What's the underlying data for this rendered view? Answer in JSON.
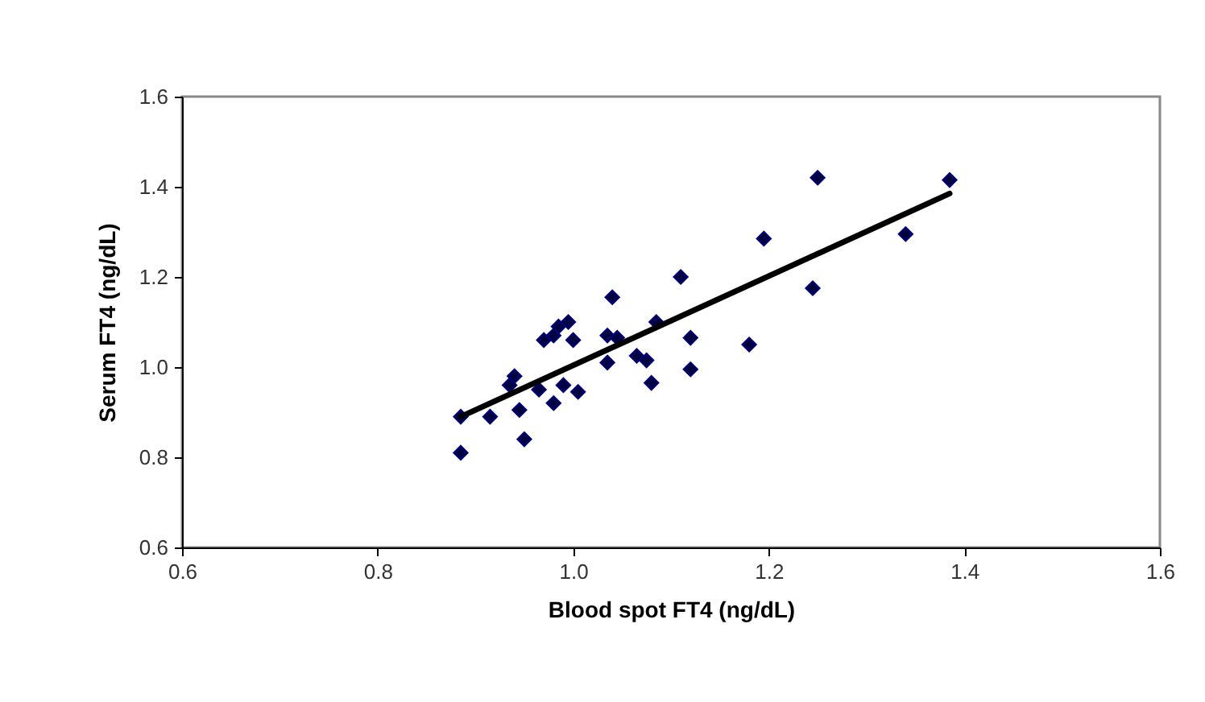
{
  "chart_data": {
    "type": "scatter",
    "xlabel": "Blood spot FT4 (ng/dL)",
    "ylabel": "Serum FT4 (ng/dL)",
    "xlim": [
      0.6,
      1.6
    ],
    "ylim": [
      0.6,
      1.6
    ],
    "xticks": [
      {
        "value": 0.6,
        "label": "0.6"
      },
      {
        "value": 0.8,
        "label": "0.8"
      },
      {
        "value": 1.0,
        "label": "1.0"
      },
      {
        "value": 1.2,
        "label": "1.2"
      },
      {
        "value": 1.4,
        "label": "1.4"
      },
      {
        "value": 1.6,
        "label": "1.6"
      }
    ],
    "yticks": [
      {
        "value": 0.6,
        "label": "0.6"
      },
      {
        "value": 0.8,
        "label": "0.8"
      },
      {
        "value": 1.0,
        "label": "1.0"
      },
      {
        "value": 1.2,
        "label": "1.2"
      },
      {
        "value": 1.4,
        "label": "1.4"
      },
      {
        "value": 1.6,
        "label": "1.6"
      }
    ],
    "grid": false,
    "series": [
      {
        "marker": "diamond",
        "color": "#000040",
        "x": [
          0.885,
          0.885,
          0.915,
          0.935,
          0.94,
          0.945,
          0.95,
          0.965,
          0.97,
          0.98,
          0.98,
          0.985,
          0.995,
          0.99,
          1.0,
          1.005,
          1.035,
          1.035,
          1.04,
          1.045,
          1.065,
          1.075,
          1.08,
          1.085,
          1.11,
          1.12,
          1.12,
          1.18,
          1.195,
          1.245,
          1.25,
          1.34,
          1.385
        ],
        "values": [
          0.81,
          0.89,
          0.89,
          0.96,
          0.98,
          0.905,
          0.84,
          0.95,
          1.06,
          0.92,
          1.07,
          1.09,
          1.1,
          0.96,
          1.06,
          0.945,
          1.07,
          1.01,
          1.155,
          1.065,
          1.025,
          1.015,
          0.965,
          1.1,
          1.2,
          1.065,
          0.995,
          1.05,
          1.285,
          1.175,
          1.42,
          1.295,
          1.415
        ]
      },
      {
        "type": "line",
        "marker": "none",
        "color": "#000000",
        "line_style": "solid",
        "x": [
          0.885,
          1.385
        ],
        "values": [
          0.89,
          1.385
        ]
      }
    ]
  }
}
